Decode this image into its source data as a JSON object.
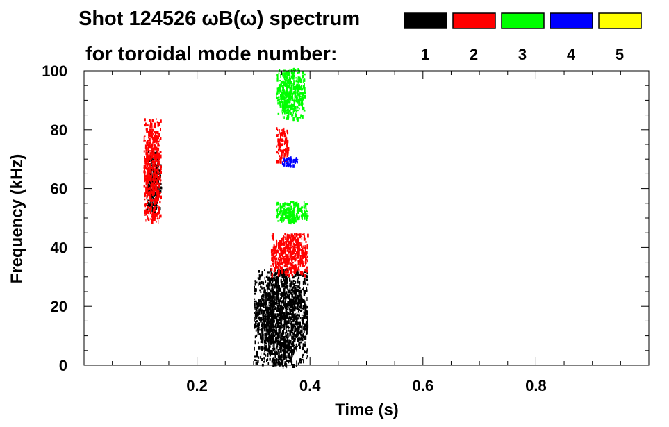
{
  "chart_data": {
    "type": "heatmap",
    "title_line1": "Shot 124526 ωB(ω) spectrum",
    "title_line2": "for toroidal mode number:",
    "xlabel": "Time (s)",
    "ylabel": "Frequency (kHz)",
    "xlim": [
      0.0,
      1.0
    ],
    "ylim": [
      0,
      100
    ],
    "x_ticks": [
      0.2,
      0.4,
      0.6,
      0.8
    ],
    "x_tick_labels": [
      "0.2",
      "0.4",
      "0.6",
      "0.8"
    ],
    "y_ticks": [
      0,
      20,
      40,
      60,
      80,
      100
    ],
    "y_tick_labels": [
      "0",
      "20",
      "40",
      "60",
      "80",
      "100"
    ],
    "grid": false,
    "legend_placement": "top-right",
    "legend": [
      {
        "label": "1",
        "color": "#000000"
      },
      {
        "label": "2",
        "color": "#ff0000"
      },
      {
        "label": "3",
        "color": "#00ff00"
      },
      {
        "label": "4",
        "color": "#0000ff"
      },
      {
        "label": "5",
        "color": "#ffff00"
      }
    ],
    "regions": [
      {
        "mode": 1,
        "t": [
          0.11,
          0.135
        ],
        "f": [
          52,
          73
        ]
      },
      {
        "mode": 2,
        "t": [
          0.105,
          0.135
        ],
        "f": [
          49,
          84
        ]
      },
      {
        "mode": 1,
        "t": [
          0.3,
          0.395
        ],
        "f": [
          0,
          33
        ]
      },
      {
        "mode": 2,
        "t": [
          0.33,
          0.395
        ],
        "f": [
          31,
          45
        ]
      },
      {
        "mode": 3,
        "t": [
          0.34,
          0.395
        ],
        "f": [
          49,
          56
        ]
      },
      {
        "mode": 2,
        "t": [
          0.34,
          0.36
        ],
        "f": [
          69,
          81
        ]
      },
      {
        "mode": 4,
        "t": [
          0.35,
          0.38
        ],
        "f": [
          68,
          71
        ]
      },
      {
        "mode": 3,
        "t": [
          0.34,
          0.39
        ],
        "f": [
          84,
          101
        ]
      }
    ]
  }
}
